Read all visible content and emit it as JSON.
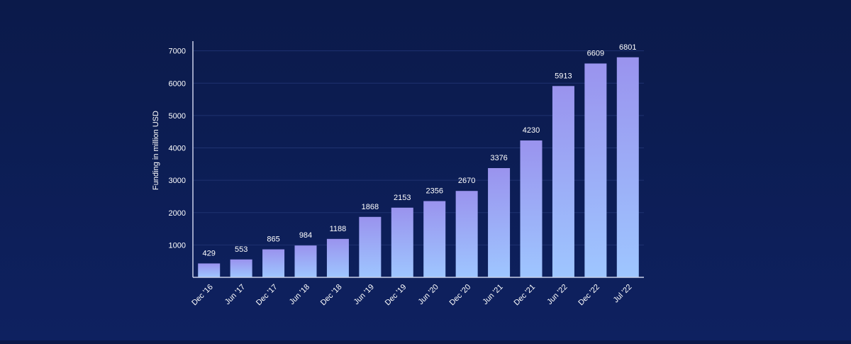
{
  "chart_data": {
    "type": "bar",
    "title": "",
    "xlabel": "",
    "ylabel": "Funding in million USD",
    "ylim": [
      0,
      7300
    ],
    "yticks": [
      1000,
      2000,
      3000,
      4000,
      5000,
      6000,
      7000
    ],
    "grid": true,
    "categories": [
      "Dec '16",
      "Jun '17",
      "Dec '17",
      "Jun '18",
      "Dec '18",
      "Jun '19",
      "Dec '19",
      "Jun '20",
      "Dec '20",
      "Jun '21",
      "Dec '21",
      "Jun '22",
      "Dec '22",
      "Jul '22"
    ],
    "values": [
      429,
      553,
      865,
      984,
      1188,
      1868,
      2153,
      2356,
      2670,
      3376,
      4230,
      5913,
      6609,
      6801
    ],
    "colors": {
      "bar_top": "#9a93ee",
      "bar_bottom": "#9ec6ff",
      "axis": "#c9cfe8",
      "grid": "#1f3270",
      "text": "#ffffff"
    }
  }
}
